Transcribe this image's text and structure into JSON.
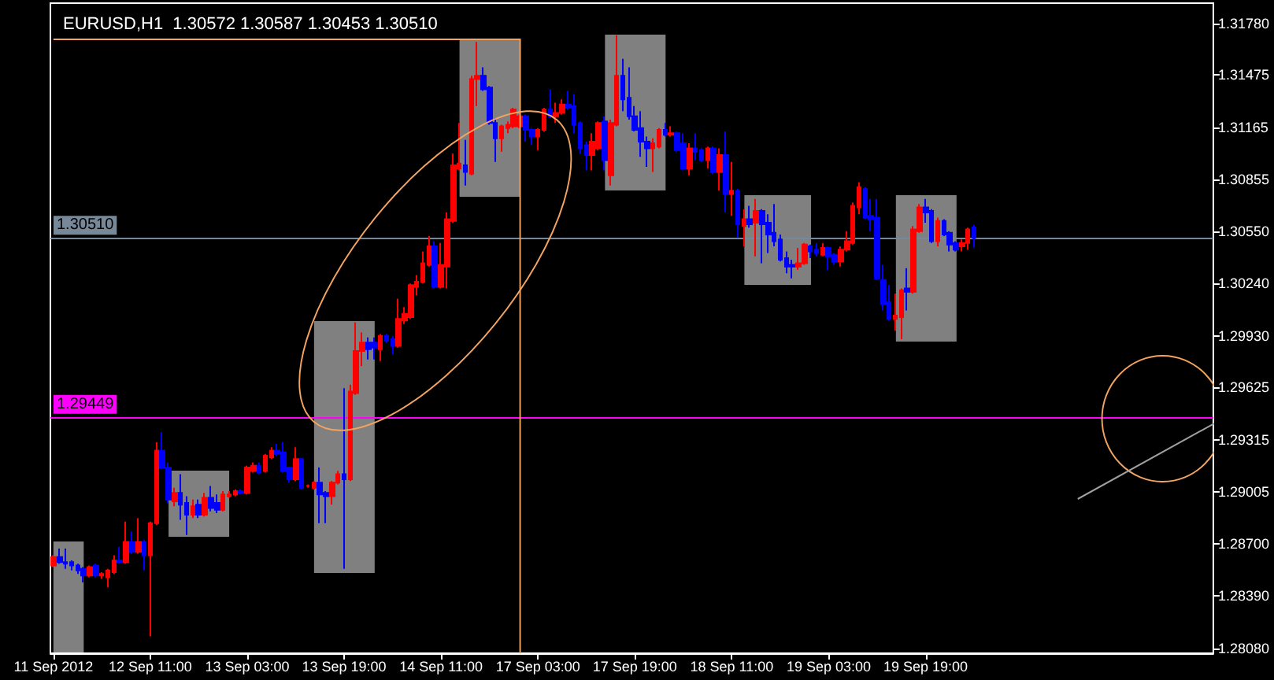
{
  "chart_data": {
    "type": "candlestick",
    "title": "EURUSD,H1  1.30572 1.30587 1.30453 1.30510",
    "categories": [
      "11 Sep 2012",
      null,
      null,
      null,
      null,
      null,
      null,
      null,
      null,
      null,
      null,
      null,
      null,
      null,
      null,
      null,
      "12 Sep 11:00",
      null,
      null,
      null,
      null,
      null,
      null,
      null,
      null,
      null,
      null,
      null,
      null,
      null,
      null,
      null,
      "13 Sep 03:00",
      null,
      null,
      null,
      null,
      null,
      null,
      null,
      null,
      null,
      null,
      null,
      null,
      null,
      null,
      null,
      "13 Sep 19:00",
      null,
      null,
      null,
      null,
      null,
      null,
      null,
      null,
      null,
      null,
      null,
      null,
      null,
      null,
      null,
      "14 Sep 11:00",
      null,
      null,
      null,
      null,
      null,
      null,
      null,
      null,
      null,
      null,
      null,
      null,
      null,
      null,
      null,
      "17 Sep 03:00",
      null,
      null,
      null,
      null,
      null,
      null,
      null,
      null,
      null,
      null,
      null,
      null,
      null,
      null,
      null,
      "17 Sep 19:00",
      null,
      null,
      null,
      null,
      null,
      null,
      null,
      null,
      null,
      null,
      null,
      null,
      null,
      null,
      null,
      "18 Sep 11:00",
      null,
      null,
      null,
      null,
      null,
      null,
      null,
      null,
      null,
      null,
      null,
      null,
      null,
      null,
      null,
      "19 Sep 03:00",
      null,
      null,
      null,
      null,
      null,
      null,
      null,
      null,
      null,
      null,
      null,
      null,
      null,
      null,
      null,
      "19 Sep 19:00",
      null,
      null,
      null,
      null,
      null,
      null,
      null,
      null,
      null,
      null,
      null,
      null,
      null,
      null,
      null,
      null,
      null,
      null,
      null,
      null,
      null,
      null,
      null,
      null,
      null,
      null,
      null,
      null,
      null,
      null,
      null,
      null,
      null,
      null,
      null,
      null,
      null,
      null,
      null,
      null,
      null,
      null,
      null,
      null,
      null,
      null,
      null
    ],
    "ohlc": [
      [
        1.2857,
        1.2863,
        1.2856,
        1.2862
      ],
      [
        1.2862,
        1.2867,
        1.2858,
        1.2859
      ],
      [
        1.2859,
        1.2867,
        1.2855,
        1.2858
      ],
      [
        1.2859,
        1.286,
        1.2854,
        1.2857
      ],
      [
        1.2857,
        1.2858,
        1.2852,
        1.2854
      ],
      [
        1.2855,
        1.2856,
        1.2847,
        1.2851
      ],
      [
        1.2851,
        1.2857,
        1.285,
        1.2856
      ],
      [
        1.2857,
        1.2858,
        1.285,
        1.2851
      ],
      [
        1.2851,
        1.2853,
        1.2849,
        1.2852
      ],
      [
        1.285,
        1.2855,
        1.2844,
        1.2854
      ],
      [
        1.2853,
        1.2863,
        1.2852,
        1.286
      ],
      [
        1.286,
        1.2868,
        1.2858,
        1.2859
      ],
      [
        1.2859,
        1.2883,
        1.2858,
        1.2871
      ],
      [
        1.2871,
        1.2877,
        1.2864,
        1.2865
      ],
      [
        1.2865,
        1.2885,
        1.2864,
        1.2871
      ],
      [
        1.2871,
        1.2872,
        1.2854,
        1.2863
      ],
      [
        1.2863,
        1.2883,
        1.2815,
        1.2882
      ],
      [
        1.2882,
        1.293,
        1.2881,
        1.2925
      ],
      [
        1.2925,
        1.2936,
        1.2914,
        1.2915
      ],
      [
        1.2915,
        1.2918,
        1.2894,
        1.2896
      ],
      [
        1.2895,
        1.2903,
        1.2892,
        1.29
      ],
      [
        1.29,
        1.2911,
        1.2884,
        1.2893
      ],
      [
        1.2894,
        1.2898,
        1.2875,
        1.2887
      ],
      [
        1.2887,
        1.2896,
        1.2885,
        1.2892
      ],
      [
        1.2893,
        1.2896,
        1.2885,
        1.2887
      ],
      [
        1.2887,
        1.29,
        1.2886,
        1.2897
      ],
      [
        1.2897,
        1.2904,
        1.2889,
        1.2891
      ],
      [
        1.2894,
        1.2899,
        1.2888,
        1.289
      ],
      [
        1.289,
        1.2901,
        1.2889,
        1.2899
      ],
      [
        1.2898,
        1.2901,
        1.2897,
        1.2899
      ],
      [
        1.2899,
        1.2902,
        1.2898,
        1.2901
      ],
      [
        1.2901,
        1.2902,
        1.2899,
        1.29
      ],
      [
        1.29,
        1.2916,
        1.2899,
        1.2915
      ],
      [
        1.2913,
        1.2918,
        1.2912,
        1.2916
      ],
      [
        1.2916,
        1.2918,
        1.2911,
        1.2912
      ],
      [
        1.2913,
        1.2923,
        1.2912,
        1.2922
      ],
      [
        1.2921,
        1.2927,
        1.292,
        1.2925
      ],
      [
        1.2925,
        1.2929,
        1.2922,
        1.2923
      ],
      [
        1.2924,
        1.293,
        1.2912,
        1.2913
      ],
      [
        1.2915,
        1.2915,
        1.2906,
        1.2908
      ],
      [
        1.2908,
        1.2927,
        1.2907,
        1.292
      ],
      [
        1.292,
        1.292,
        1.2902,
        1.2903
      ],
      [
        1.2904,
        1.2905,
        1.2903,
        1.2904
      ],
      [
        1.2903,
        1.2907,
        1.2902,
        1.2906
      ],
      [
        1.2906,
        1.2915,
        1.2882,
        1.2899
      ],
      [
        1.29,
        1.2901,
        1.2882,
        1.2898
      ],
      [
        1.2898,
        1.2907,
        1.2893,
        1.2906
      ],
      [
        1.2906,
        1.2913,
        1.2905,
        1.2911
      ],
      [
        1.2911,
        1.2962,
        1.2855,
        1.2908
      ],
      [
        1.2908,
        1.2964,
        1.2907,
        1.296
      ],
      [
        1.2959,
        1.3001,
        1.2958,
        1.2984
      ],
      [
        1.2984,
        1.2995,
        1.2975,
        1.2989
      ],
      [
        1.2989,
        1.2992,
        1.2979,
        1.2985
      ],
      [
        1.2989,
        1.2992,
        1.2979,
        1.2986
      ],
      [
        1.2985,
        1.2994,
        1.2978,
        1.2993
      ],
      [
        1.2993,
        1.2994,
        1.2989,
        1.299
      ],
      [
        1.2991,
        1.2993,
        1.2982,
        1.2987
      ],
      [
        1.2987,
        1.3015,
        1.2986,
        1.3003
      ],
      [
        1.3002,
        1.301,
        1.3,
        1.3006
      ],
      [
        1.3004,
        1.3024,
        1.3003,
        1.3023
      ],
      [
        1.3022,
        1.3029,
        1.3017,
        1.3025
      ],
      [
        1.3025,
        1.3043,
        1.3024,
        1.3036
      ],
      [
        1.3035,
        1.3052,
        1.3034,
        1.3046
      ],
      [
        1.3046,
        1.3049,
        1.3021,
        1.3022
      ],
      [
        1.3022,
        1.3048,
        1.3021,
        1.3035
      ],
      [
        1.3034,
        1.3066,
        1.3021,
        1.3062
      ],
      [
        1.3061,
        1.3101,
        1.306,
        1.3094
      ],
      [
        1.3092,
        1.3119,
        1.3091,
        1.3095
      ],
      [
        1.3094,
        1.3109,
        1.3082,
        1.309
      ],
      [
        1.3089,
        1.3147,
        1.3088,
        1.3145
      ],
      [
        1.3145,
        1.3167,
        1.3129,
        1.3147
      ],
      [
        1.3147,
        1.3152,
        1.3138,
        1.3139
      ],
      [
        1.314,
        1.3141,
        1.3118,
        1.3119
      ],
      [
        1.3119,
        1.3122,
        1.3096,
        1.311
      ],
      [
        1.311,
        1.3118,
        1.3102,
        1.3117
      ],
      [
        1.3116,
        1.312,
        1.3113,
        1.3118
      ],
      [
        1.3117,
        1.3128,
        1.3116,
        1.3127
      ],
      [
        1.3117,
        1.3124,
        1.3116,
        1.3123
      ],
      [
        1.3123,
        1.3124,
        1.3108,
        1.3115
      ],
      [
        1.3115,
        1.3116,
        1.3106,
        1.3111
      ],
      [
        1.3111,
        1.3116,
        1.3103,
        1.3115
      ],
      [
        1.3115,
        1.3128,
        1.3114,
        1.3127
      ],
      [
        1.3127,
        1.3139,
        1.3122,
        1.3123
      ],
      [
        1.3123,
        1.3131,
        1.3119,
        1.3125
      ],
      [
        1.3125,
        1.3133,
        1.3124,
        1.313
      ],
      [
        1.313,
        1.3138,
        1.3127,
        1.3128
      ],
      [
        1.3129,
        1.3136,
        1.3113,
        1.3118
      ],
      [
        1.3119,
        1.312,
        1.3101,
        1.3104
      ],
      [
        1.3106,
        1.3108,
        1.3091,
        1.31
      ],
      [
        1.31,
        1.3113,
        1.3091,
        1.3108
      ],
      [
        1.3104,
        1.312,
        1.3103,
        1.3119
      ],
      [
        1.312,
        1.3123,
        1.3091,
        1.3097
      ],
      [
        1.3088,
        1.3121,
        1.3082,
        1.3119
      ],
      [
        1.3118,
        1.3171,
        1.3117,
        1.3147
      ],
      [
        1.3147,
        1.3157,
        1.3126,
        1.3133
      ],
      [
        1.3134,
        1.3152,
        1.3121,
        1.3123
      ],
      [
        1.3123,
        1.3129,
        1.3114,
        1.3115
      ],
      [
        1.3116,
        1.3126,
        1.3099,
        1.3108
      ],
      [
        1.3108,
        1.3111,
        1.3093,
        1.3104
      ],
      [
        1.3104,
        1.311,
        1.309,
        1.3107
      ],
      [
        1.3105,
        1.3116,
        1.3104,
        1.3115
      ],
      [
        1.3115,
        1.3119,
        1.3111,
        1.3112
      ],
      [
        1.3112,
        1.3117,
        1.3111,
        1.3113
      ],
      [
        1.3113,
        1.3114,
        1.3102,
        1.3103
      ],
      [
        1.3107,
        1.3113,
        1.3091,
        1.3092
      ],
      [
        1.3092,
        1.3107,
        1.3088,
        1.3104
      ],
      [
        1.3104,
        1.3113,
        1.3097,
        1.3102
      ],
      [
        1.3103,
        1.3104,
        1.3096,
        1.3097
      ],
      [
        1.3097,
        1.3105,
        1.3092,
        1.3104
      ],
      [
        1.3104,
        1.3105,
        1.3089,
        1.309
      ],
      [
        1.309,
        1.3104,
        1.3079,
        1.31
      ],
      [
        1.31,
        1.3114,
        1.3066,
        1.3077
      ],
      [
        1.3077,
        1.3096,
        1.3064,
        1.3079
      ],
      [
        1.3079,
        1.308,
        1.3051,
        1.3059
      ],
      [
        1.3058,
        1.3068,
        1.3046,
        1.3062
      ],
      [
        1.3062,
        1.307,
        1.3057,
        1.3059
      ],
      [
        1.306,
        1.3074,
        1.304,
        1.3067
      ],
      [
        1.3067,
        1.3068,
        1.3036,
        1.3059
      ],
      [
        1.306,
        1.3065,
        1.3042,
        1.3053
      ],
      [
        1.3054,
        1.3071,
        1.3046,
        1.3049
      ],
      [
        1.305,
        1.3053,
        1.3037,
        1.3038
      ],
      [
        1.3039,
        1.3043,
        1.303,
        1.3034
      ],
      [
        1.3035,
        1.3038,
        1.3027,
        1.3034
      ],
      [
        1.3034,
        1.3045,
        1.3032,
        1.3036
      ],
      [
        1.3036,
        1.3048,
        1.3035,
        1.3047
      ],
      [
        1.3046,
        1.3047,
        1.3039,
        1.3043
      ],
      [
        1.3044,
        1.3048,
        1.304,
        1.3042
      ],
      [
        1.3041,
        1.3048,
        1.304,
        1.3045
      ],
      [
        1.3045,
        1.3046,
        1.3032,
        1.304
      ],
      [
        1.3041,
        1.3042,
        1.3035,
        1.3037
      ],
      [
        1.3037,
        1.3046,
        1.3034,
        1.3044
      ],
      [
        1.3044,
        1.3055,
        1.3043,
        1.3049
      ],
      [
        1.3048,
        1.3072,
        1.3047,
        1.307
      ],
      [
        1.3069,
        1.3084,
        1.3065,
        1.3081
      ],
      [
        1.308,
        1.3081,
        1.3062,
        1.3063
      ],
      [
        1.3064,
        1.3074,
        1.3055,
        1.3062
      ],
      [
        1.3063,
        1.3074,
        1.3026,
        1.3027
      ],
      [
        1.3026,
        1.3035,
        1.3008,
        1.3012
      ],
      [
        1.3013,
        1.3023,
        1.3002,
        1.3003
      ],
      [
        1.3003,
        1.3018,
        1.2996,
        1.3005
      ],
      [
        1.3004,
        1.3021,
        1.2991,
        1.302
      ],
      [
        1.3021,
        1.3033,
        1.3008,
        1.3019
      ],
      [
        1.3019,
        1.3058,
        1.3018,
        1.3056
      ],
      [
        1.3055,
        1.3071,
        1.3054,
        1.3069
      ],
      [
        1.3069,
        1.3074,
        1.306,
        1.3066
      ],
      [
        1.3067,
        1.3068,
        1.3048,
        1.3049
      ],
      [
        1.3049,
        1.3063,
        1.3046,
        1.3061
      ],
      [
        1.3061,
        1.3062,
        1.3052,
        1.3053
      ],
      [
        1.3054,
        1.3055,
        1.3043,
        1.3047
      ],
      [
        1.3048,
        1.3049,
        1.3043,
        1.3044
      ],
      [
        1.3046,
        1.305,
        1.3043,
        1.3048
      ],
      [
        1.3048,
        1.3057,
        1.3044,
        1.3056
      ],
      [
        1.30572,
        1.30587,
        1.30453,
        1.3051
      ],
      null,
      null,
      null,
      null,
      null,
      null,
      null,
      null,
      null,
      null,
      null,
      null,
      null,
      null,
      null,
      null,
      null,
      null,
      null,
      null,
      null,
      null,
      null,
      null,
      null,
      null,
      null,
      null,
      null,
      null,
      null,
      null,
      null,
      null,
      null,
      null,
      null,
      null,
      null
    ],
    "colors": [
      "#ff0000",
      "#0000ff",
      "#0000ff",
      "#0000ff",
      "#0000ff",
      "#0000ff",
      "#ff0000",
      "#0000ff",
      "#ff0000",
      "#ff0000",
      "#ff0000",
      "#0000ff",
      "#ff0000",
      "#0000ff",
      "#ff0000",
      "#0000ff",
      "#ff0000",
      "#ff0000",
      "#0000ff",
      "#0000ff",
      "#ff0000",
      "#0000ff",
      "#0000ff",
      "#ff0000",
      "#0000ff",
      "#ff0000",
      "#0000ff",
      "#0000ff",
      "#ff0000",
      "#ff0000",
      "#ff0000",
      "#0000ff",
      "#ff0000",
      "#ff0000",
      "#0000ff",
      "#ff0000",
      "#ff0000",
      "#0000ff",
      "#0000ff",
      "#0000ff",
      "#ff0000",
      "#0000ff",
      "#ff0000",
      "#ff0000",
      "#0000ff",
      "#0000ff",
      "#ff0000",
      "#ff0000",
      "#0000ff",
      "#ff0000",
      "#ff0000",
      "#ff0000",
      "#0000ff",
      "#0000ff",
      "#ff0000",
      "#0000ff",
      "#0000ff",
      "#ff0000",
      "#ff0000",
      "#ff0000",
      "#ff0000",
      "#ff0000",
      "#ff0000",
      "#0000ff",
      "#ff0000",
      "#ff0000",
      "#ff0000",
      "#ff0000",
      "#0000ff",
      "#ff0000",
      "#ff0000",
      "#0000ff",
      "#0000ff",
      "#0000ff",
      "#ff0000",
      "#ff0000",
      "#ff0000",
      "#ff0000",
      "#0000ff",
      "#0000ff",
      "#ff0000",
      "#ff0000",
      "#0000ff",
      "#ff0000",
      "#ff0000",
      "#0000ff",
      "#0000ff",
      "#0000ff",
      "#0000ff",
      "#ff0000",
      "#ff0000",
      "#0000ff",
      "#ff0000",
      "#ff0000",
      "#0000ff",
      "#0000ff",
      "#0000ff",
      "#0000ff",
      "#0000ff",
      "#ff0000",
      "#ff0000",
      "#0000ff",
      "#ff0000",
      "#0000ff",
      "#0000ff",
      "#ff0000",
      "#0000ff",
      "#0000ff",
      "#ff0000",
      "#0000ff",
      "#ff0000",
      "#0000ff",
      "#ff0000",
      "#0000ff",
      "#ff0000",
      "#0000ff",
      "#ff0000",
      "#0000ff",
      "#0000ff",
      "#0000ff",
      "#0000ff",
      "#0000ff",
      "#0000ff",
      "#ff0000",
      "#ff0000",
      "#0000ff",
      "#0000ff",
      "#ff0000",
      "#0000ff",
      "#0000ff",
      "#ff0000",
      "#ff0000",
      "#ff0000",
      "#ff0000",
      "#0000ff",
      "#0000ff",
      "#0000ff",
      "#0000ff",
      "#0000ff",
      "#ff0000",
      "#ff0000",
      "#0000ff",
      "#ff0000",
      "#ff0000",
      "#0000ff",
      "#0000ff",
      "#ff0000",
      "#0000ff",
      "#0000ff",
      "#0000ff",
      "#ff0000",
      "#ff0000",
      "#0000ff",
      null,
      null,
      null,
      null,
      null,
      null,
      null,
      null,
      null,
      null,
      null,
      null,
      null,
      null,
      null,
      null,
      null,
      null,
      null,
      null,
      null,
      null,
      null,
      null,
      null,
      null,
      null,
      null,
      null,
      null,
      null,
      null,
      null,
      null,
      null,
      null,
      null,
      null,
      null
    ],
    "ylim": [
      1.2805,
      1.319
    ],
    "yticks": [
      {
        "value": 1.3178,
        "label": "1.31780"
      },
      {
        "value": 1.31475,
        "label": "1.31475"
      },
      {
        "value": 1.31165,
        "label": "1.31165"
      },
      {
        "value": 1.30855,
        "label": "1.30855"
      },
      {
        "value": 1.3055,
        "label": "1.30550"
      },
      {
        "value": 1.3024,
        "label": "1.30240"
      },
      {
        "value": 1.2993,
        "label": "1.29930"
      },
      {
        "value": 1.29625,
        "label": "1.29625"
      },
      {
        "value": 1.29315,
        "label": "1.29315"
      },
      {
        "value": 1.29005,
        "label": "1.29005"
      },
      {
        "value": 1.287,
        "label": "1.28700"
      },
      {
        "value": 1.2839,
        "label": "1.28390"
      },
      {
        "value": 1.2808,
        "label": "1.28080"
      }
    ],
    "ref_lines": [
      {
        "axis": "y",
        "value": 1.3051,
        "label": "1.30510",
        "color": "#778899"
      },
      {
        "axis": "y",
        "value": 1.29449,
        "label": "1.29449",
        "color": "#ff00ff"
      }
    ]
  }
}
